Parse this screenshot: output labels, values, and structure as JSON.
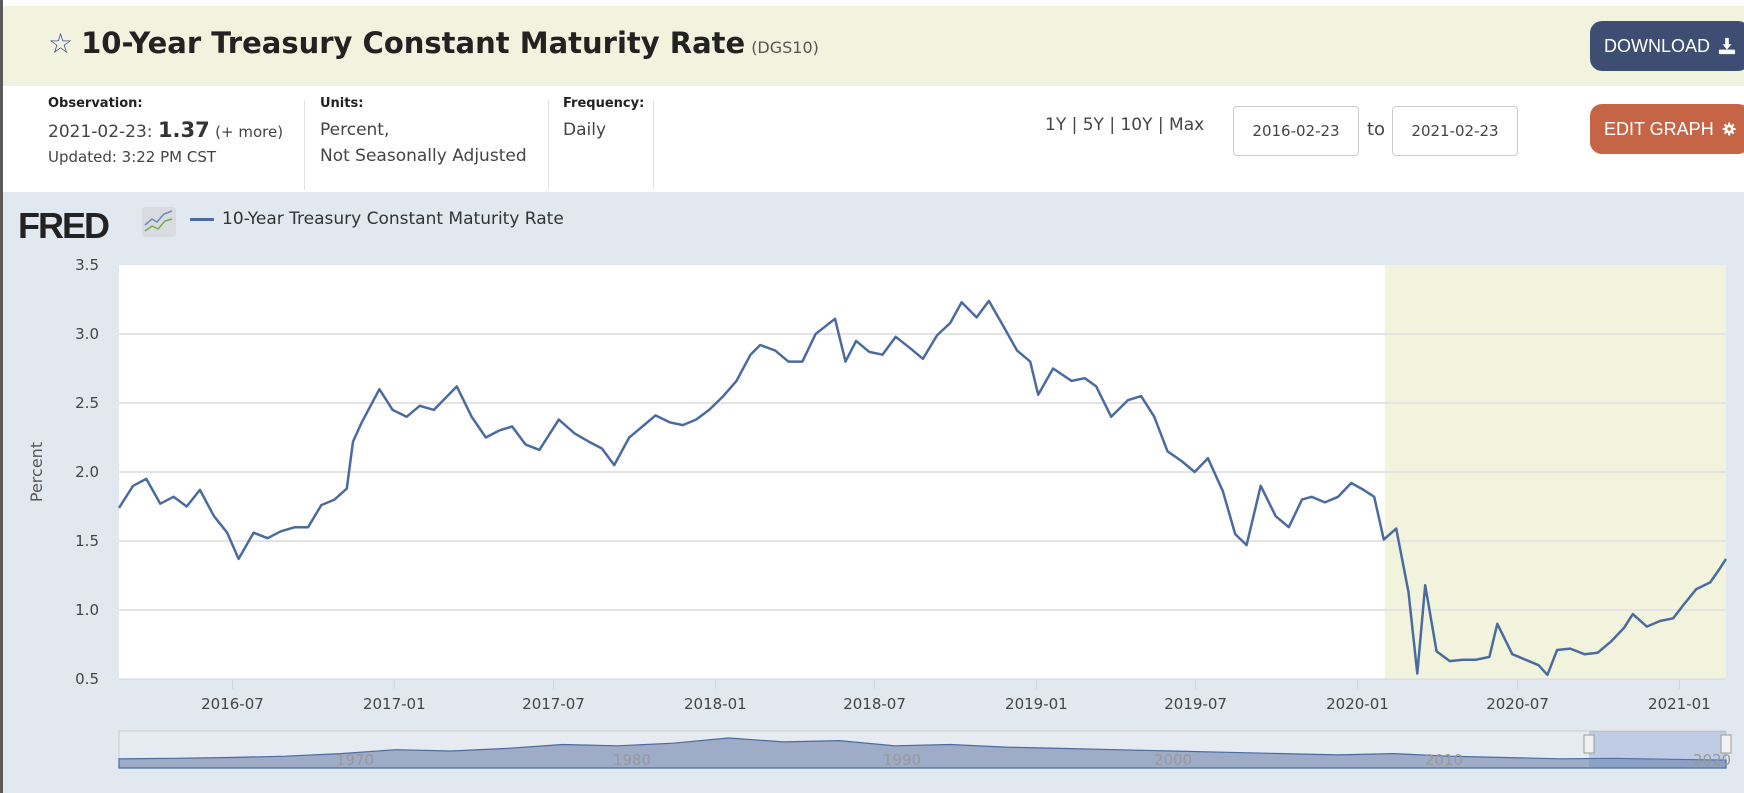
{
  "header": {
    "title": "10-Year Treasury Constant Maturity Rate",
    "series_code": "(DGS10)",
    "download_label": "DOWNLOAD",
    "edit_graph_label": "EDIT GRAPH"
  },
  "observation": {
    "label": "Observation:",
    "date": "2021-02-23:",
    "value": "1.37",
    "more": "(+ more)",
    "updated": "Updated: 3:22 PM CST"
  },
  "units": {
    "label": "Units:",
    "line1": "Percent,",
    "line2": "Not Seasonally Adjusted"
  },
  "frequency": {
    "label": "Frequency:",
    "value": "Daily"
  },
  "range": {
    "presets": "1Y | 5Y | 10Y | Max",
    "start": "2016-02-23",
    "to_label": "to",
    "end": "2021-02-23"
  },
  "legend": {
    "fred_logo": "FRED",
    "series_label": "10-Year Treasury Constant Maturity Rate"
  },
  "colors": {
    "line": "#4b6ba0",
    "recession": "#f2f3dc",
    "download": "#3e4e73",
    "edit": "#c56546"
  },
  "chart_data": {
    "type": "line",
    "title": "10-Year Treasury Constant Maturity Rate",
    "xlabel": "",
    "ylabel": "Percent",
    "ylim": [
      0.5,
      3.5
    ],
    "xlim": [
      "2016-02-23",
      "2021-02-23"
    ],
    "yticks": [
      "0.5",
      "1.0",
      "1.5",
      "2.0",
      "2.5",
      "3.0",
      "3.5"
    ],
    "xticks": [
      "2016-07",
      "2017-01",
      "2017-07",
      "2018-01",
      "2018-07",
      "2019-01",
      "2019-07",
      "2020-01",
      "2020-07",
      "2021-01"
    ],
    "grid": true,
    "legend_position": "top-left",
    "shaded_region": {
      "label": "recession",
      "start": "2020-02",
      "end": "2021-02-23"
    },
    "series": [
      {
        "name": "10-Year Treasury Constant Maturity Rate",
        "x": [
          "2016-02-23",
          "2016-03-10",
          "2016-03-25",
          "2016-04-10",
          "2016-04-25",
          "2016-05-10",
          "2016-05-25",
          "2016-06-10",
          "2016-06-25",
          "2016-07-08",
          "2016-07-25",
          "2016-08-10",
          "2016-08-25",
          "2016-09-10",
          "2016-09-25",
          "2016-10-10",
          "2016-10-25",
          "2016-11-08",
          "2016-11-15",
          "2016-11-25",
          "2016-12-15",
          "2016-12-30",
          "2017-01-15",
          "2017-01-30",
          "2017-02-15",
          "2017-03-13",
          "2017-03-30",
          "2017-04-15",
          "2017-04-30",
          "2017-05-15",
          "2017-05-30",
          "2017-06-15",
          "2017-07-07",
          "2017-07-25",
          "2017-08-10",
          "2017-08-25",
          "2017-09-08",
          "2017-09-25",
          "2017-10-10",
          "2017-10-25",
          "2017-11-10",
          "2017-11-25",
          "2017-12-10",
          "2017-12-25",
          "2018-01-10",
          "2018-01-25",
          "2018-02-10",
          "2018-02-21",
          "2018-03-10",
          "2018-03-25",
          "2018-04-10",
          "2018-04-25",
          "2018-05-17",
          "2018-05-29",
          "2018-06-10",
          "2018-06-25",
          "2018-07-10",
          "2018-07-25",
          "2018-08-10",
          "2018-08-25",
          "2018-09-10",
          "2018-09-25",
          "2018-10-08",
          "2018-10-25",
          "2018-11-08",
          "2018-11-25",
          "2018-12-10",
          "2018-12-25",
          "2019-01-03",
          "2019-01-20",
          "2019-02-10",
          "2019-02-25",
          "2019-03-10",
          "2019-03-27",
          "2019-04-15",
          "2019-04-30",
          "2019-05-15",
          "2019-05-30",
          "2019-06-15",
          "2019-06-30",
          "2019-07-15",
          "2019-08-01",
          "2019-08-15",
          "2019-08-28",
          "2019-09-13",
          "2019-09-30",
          "2019-10-15",
          "2019-10-30",
          "2019-11-10",
          "2019-11-25",
          "2019-12-10",
          "2019-12-25",
          "2020-01-08",
          "2020-01-20",
          "2020-01-31",
          "2020-02-14",
          "2020-02-28",
          "2020-03-09",
          "2020-03-18",
          "2020-03-31",
          "2020-04-15",
          "2020-04-30",
          "2020-05-15",
          "2020-05-30",
          "2020-06-08",
          "2020-06-25",
          "2020-07-10",
          "2020-07-25",
          "2020-08-04",
          "2020-08-15",
          "2020-08-30",
          "2020-09-15",
          "2020-09-30",
          "2020-10-15",
          "2020-10-30",
          "2020-11-09",
          "2020-11-25",
          "2020-12-10",
          "2020-12-25",
          "2021-01-06",
          "2021-01-20",
          "2021-02-05",
          "2021-02-16",
          "2021-02-23"
        ],
        "values": [
          1.74,
          1.9,
          1.95,
          1.77,
          1.82,
          1.75,
          1.87,
          1.68,
          1.56,
          1.37,
          1.56,
          1.52,
          1.57,
          1.6,
          1.6,
          1.76,
          1.8,
          1.88,
          2.22,
          2.36,
          2.6,
          2.45,
          2.4,
          2.48,
          2.45,
          2.62,
          2.4,
          2.25,
          2.3,
          2.33,
          2.2,
          2.16,
          2.38,
          2.28,
          2.22,
          2.17,
          2.05,
          2.25,
          2.33,
          2.41,
          2.36,
          2.34,
          2.38,
          2.45,
          2.55,
          2.66,
          2.85,
          2.92,
          2.88,
          2.8,
          2.8,
          3.0,
          3.11,
          2.8,
          2.95,
          2.87,
          2.85,
          2.98,
          2.9,
          2.82,
          2.99,
          3.08,
          3.23,
          3.12,
          3.24,
          3.05,
          2.88,
          2.8,
          2.56,
          2.75,
          2.66,
          2.68,
          2.62,
          2.4,
          2.52,
          2.55,
          2.4,
          2.15,
          2.08,
          2.0,
          2.1,
          1.86,
          1.55,
          1.47,
          1.9,
          1.68,
          1.6,
          1.8,
          1.82,
          1.78,
          1.82,
          1.92,
          1.87,
          1.82,
          1.51,
          1.59,
          1.13,
          0.54,
          1.18,
          0.7,
          0.63,
          0.64,
          0.64,
          0.66,
          0.9,
          0.68,
          0.64,
          0.6,
          0.53,
          0.71,
          0.72,
          0.68,
          0.69,
          0.77,
          0.87,
          0.97,
          0.88,
          0.92,
          0.94,
          1.04,
          1.15,
          1.2,
          1.3,
          1.37
        ]
      }
    ],
    "navigator": {
      "labels": [
        "1970",
        "1980",
        "1990",
        "2000",
        "2010",
        "2020"
      ]
    }
  }
}
